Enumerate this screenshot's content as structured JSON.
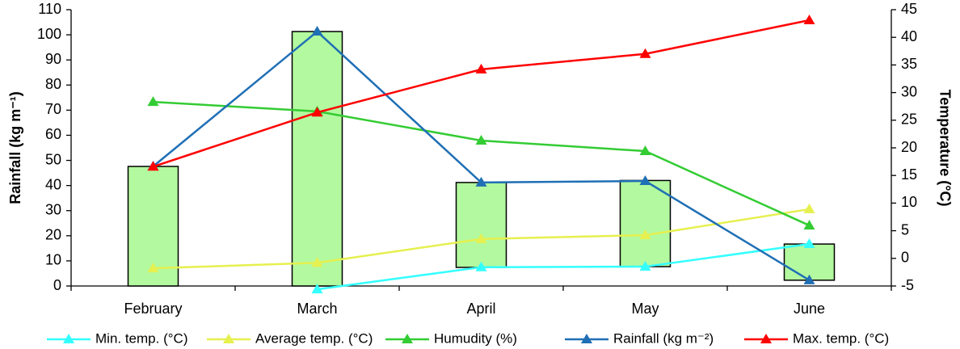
{
  "chart_data": {
    "type": "bar-line",
    "categories": [
      "February",
      "March",
      "April",
      "May",
      "June"
    ],
    "y_label": "Rainfall (kg m⁻¹)",
    "y2_label": "Temperature (°C)",
    "ylim": [
      0,
      110
    ],
    "yticks": [
      0,
      10,
      20,
      30,
      40,
      50,
      60,
      70,
      80,
      90,
      100,
      110
    ],
    "y2lim": [
      -5,
      45
    ],
    "y2ticks": [
      -5,
      0,
      5,
      10,
      15,
      20,
      25,
      30,
      35,
      40,
      45
    ],
    "grid": false,
    "bars": {
      "color": "#b3f99f",
      "low": [
        0,
        0,
        7.4,
        7.7,
        2.3
      ],
      "values": [
        47.6,
        101.3,
        41.2,
        42,
        16.7
      ]
    },
    "series": [
      {
        "name": "Min. temp. (°C)",
        "color": "#33ffff",
        "axis": "y2",
        "values": [
          null,
          -5.6,
          -1.6,
          -1.5,
          2.6
        ]
      },
      {
        "name": "Average temp. (°C)",
        "color": "#e6f04f",
        "axis": "y2",
        "values": [
          -1.8,
          -0.8,
          3.5,
          4.2,
          8.9
        ]
      },
      {
        "name": "Humudity (%)",
        "color": "#33cc33",
        "values": [
          73.3,
          69.5,
          57.9,
          53.7,
          24.1
        ]
      },
      {
        "name": "Rainfall (kg m⁻²)",
        "color": "#1f6fb5",
        "values": [
          47.6,
          101.3,
          41.2,
          41.8,
          2.3
        ]
      },
      {
        "name": "Max. temp. (°C)",
        "color": "#ff0000",
        "axis": "y2",
        "values": [
          16.6,
          26.4,
          34.2,
          37,
          43.1
        ]
      }
    ]
  }
}
